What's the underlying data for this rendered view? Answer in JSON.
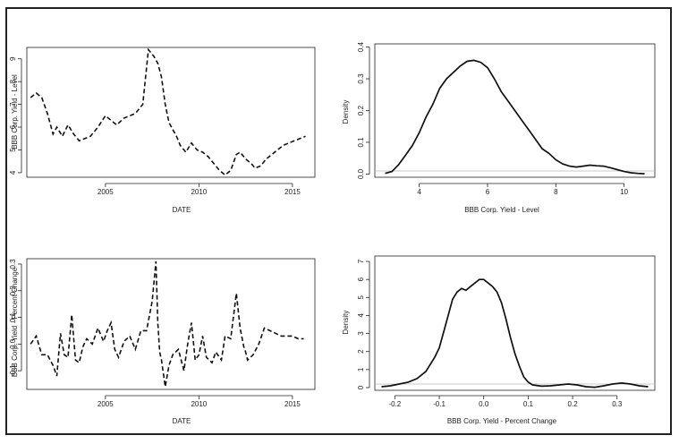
{
  "chart_data": [
    {
      "id": "level-ts",
      "type": "line",
      "line_style": "dashed",
      "xlabel": "DATE",
      "ylabel": "BBB Corp. Yield - Level",
      "xlim": [
        2000.8,
        2016.2
      ],
      "ylim": [
        3.8,
        9.5
      ],
      "xticks": [
        2005,
        2010,
        2015
      ],
      "yticks": [
        4,
        5,
        6,
        7,
        8,
        9
      ],
      "x": [
        2001.0,
        2001.3,
        2001.6,
        2001.9,
        2002.2,
        2002.4,
        2002.7,
        2003.0,
        2003.3,
        2003.6,
        2003.9,
        2004.2,
        2004.6,
        2005.0,
        2005.3,
        2005.6,
        2006.0,
        2006.3,
        2006.6,
        2007.0,
        2007.3,
        2007.6,
        2007.8,
        2008.0,
        2008.2,
        2008.4,
        2008.6,
        2008.8,
        2009.0,
        2009.3,
        2009.6,
        2009.9,
        2010.2,
        2010.5,
        2010.8,
        2011.1,
        2011.4,
        2011.7,
        2012.0,
        2012.2,
        2012.5,
        2012.8,
        2013.0,
        2013.3,
        2013.6,
        2013.9,
        2014.2,
        2014.5,
        2014.8,
        2015.1,
        2015.4,
        2015.7
      ],
      "values": [
        7.3,
        7.5,
        7.3,
        6.6,
        5.7,
        6.0,
        5.6,
        6.1,
        5.7,
        5.4,
        5.5,
        5.6,
        6.0,
        6.5,
        6.3,
        6.1,
        6.4,
        6.5,
        6.6,
        7.0,
        9.4,
        9.1,
        8.8,
        8.2,
        7.0,
        6.2,
        5.9,
        5.6,
        5.2,
        4.9,
        5.3,
        5.0,
        4.9,
        4.7,
        4.4,
        4.1,
        3.9,
        4.1,
        4.8,
        4.9,
        4.6,
        4.4,
        4.2,
        4.3,
        4.6,
        4.8,
        5.0,
        5.2,
        5.3,
        5.4,
        5.5,
        5.6
      ]
    },
    {
      "id": "level-density",
      "type": "line",
      "line_style": "solid",
      "xlabel": "BBB Corp. Yield - Level",
      "ylabel": "Density",
      "xlim": [
        2.7,
        10.9
      ],
      "ylim": [
        -0.01,
        0.41
      ],
      "xticks": [
        4,
        6,
        8,
        10
      ],
      "yticks": [
        0.0,
        0.1,
        0.2,
        0.3,
        0.4
      ],
      "x": [
        3.0,
        3.2,
        3.4,
        3.6,
        3.8,
        4.0,
        4.2,
        4.4,
        4.6,
        4.8,
        5.0,
        5.2,
        5.4,
        5.6,
        5.8,
        6.0,
        6.2,
        6.4,
        6.6,
        6.8,
        7.0,
        7.2,
        7.4,
        7.6,
        7.8,
        8.0,
        8.2,
        8.4,
        8.6,
        8.8,
        9.0,
        9.2,
        9.4,
        9.6,
        9.8,
        10.0,
        10.2,
        10.4,
        10.6
      ],
      "values": [
        0.002,
        0.008,
        0.03,
        0.06,
        0.09,
        0.13,
        0.18,
        0.22,
        0.27,
        0.3,
        0.32,
        0.34,
        0.355,
        0.358,
        0.352,
        0.335,
        0.3,
        0.26,
        0.23,
        0.2,
        0.17,
        0.14,
        0.11,
        0.08,
        0.065,
        0.045,
        0.032,
        0.025,
        0.022,
        0.025,
        0.028,
        0.026,
        0.025,
        0.02,
        0.014,
        0.008,
        0.004,
        0.002,
        0.001
      ]
    },
    {
      "id": "pct-ts",
      "type": "line",
      "line_style": "dashed",
      "xlabel": "DATE",
      "ylabel": "BBB Corp. Yield - Percent Change",
      "xlim": [
        2000.8,
        2016.2
      ],
      "ylim": [
        -0.17,
        0.32
      ],
      "xticks": [
        2005,
        2010,
        2015
      ],
      "yticks": [
        -0.1,
        0.0,
        0.1,
        0.2,
        0.3
      ],
      "x": [
        2001.0,
        2001.3,
        2001.6,
        2001.9,
        2002.2,
        2002.4,
        2002.6,
        2002.8,
        2003.0,
        2003.2,
        2003.4,
        2003.6,
        2003.8,
        2004.0,
        2004.3,
        2004.6,
        2004.9,
        2005.1,
        2005.3,
        2005.5,
        2005.7,
        2006.0,
        2006.3,
        2006.6,
        2006.9,
        2007.2,
        2007.5,
        2007.7,
        2007.8,
        2007.9,
        2008.0,
        2008.2,
        2008.4,
        2008.6,
        2008.9,
        2009.2,
        2009.4,
        2009.6,
        2009.8,
        2010.0,
        2010.2,
        2010.4,
        2010.7,
        2010.9,
        2011.2,
        2011.4,
        2011.7,
        2012.0,
        2012.2,
        2012.4,
        2012.5,
        2012.6,
        2012.9,
        2013.2,
        2013.5,
        2013.8,
        2014.1,
        2014.4,
        2014.7,
        2015.0,
        2015.3,
        2015.6
      ],
      "values": [
        0.0,
        0.03,
        -0.04,
        -0.04,
        -0.08,
        -0.12,
        0.04,
        -0.04,
        -0.05,
        0.11,
        -0.06,
        -0.07,
        -0.01,
        0.02,
        0.0,
        0.06,
        0.01,
        0.05,
        0.08,
        -0.02,
        -0.05,
        0.01,
        0.03,
        -0.02,
        0.05,
        0.05,
        0.16,
        0.31,
        0.08,
        -0.03,
        -0.06,
        -0.16,
        -0.08,
        -0.04,
        -0.02,
        -0.1,
        0.0,
        0.08,
        -0.06,
        -0.04,
        0.03,
        -0.05,
        -0.07,
        -0.03,
        -0.06,
        0.03,
        0.02,
        0.19,
        0.06,
        -0.01,
        -0.03,
        -0.06,
        -0.04,
        0.0,
        0.06,
        0.05,
        0.04,
        0.03,
        0.03,
        0.03,
        0.02,
        0.02
      ]
    },
    {
      "id": "pct-density",
      "type": "line",
      "line_style": "solid",
      "xlabel": "BBB Corp. Yield - Percent Change",
      "ylabel": "Density",
      "xlim": [
        -0.245,
        0.385
      ],
      "ylim": [
        -0.15,
        7.3
      ],
      "xticks": [
        -0.2,
        -0.1,
        0.0,
        0.1,
        0.2,
        0.3
      ],
      "yticks": [
        0,
        1,
        2,
        3,
        4,
        5,
        6,
        7
      ],
      "x": [
        -0.23,
        -0.21,
        -0.19,
        -0.17,
        -0.15,
        -0.13,
        -0.11,
        -0.1,
        -0.09,
        -0.08,
        -0.07,
        -0.06,
        -0.05,
        -0.04,
        -0.03,
        -0.02,
        -0.01,
        0.0,
        0.01,
        0.02,
        0.03,
        0.04,
        0.05,
        0.06,
        0.07,
        0.08,
        0.09,
        0.1,
        0.11,
        0.13,
        0.15,
        0.17,
        0.19,
        0.21,
        0.23,
        0.25,
        0.27,
        0.29,
        0.31,
        0.33,
        0.35,
        0.37
      ],
      "values": [
        0.05,
        0.1,
        0.2,
        0.3,
        0.5,
        0.9,
        1.7,
        2.2,
        3.1,
        4.0,
        4.9,
        5.3,
        5.5,
        5.4,
        5.6,
        5.8,
        6.0,
        6.0,
        5.8,
        5.6,
        5.3,
        4.7,
        3.8,
        2.8,
        1.9,
        1.2,
        0.6,
        0.3,
        0.15,
        0.08,
        0.1,
        0.15,
        0.2,
        0.15,
        0.05,
        0.02,
        0.1,
        0.2,
        0.25,
        0.2,
        0.1,
        0.05
      ]
    }
  ]
}
